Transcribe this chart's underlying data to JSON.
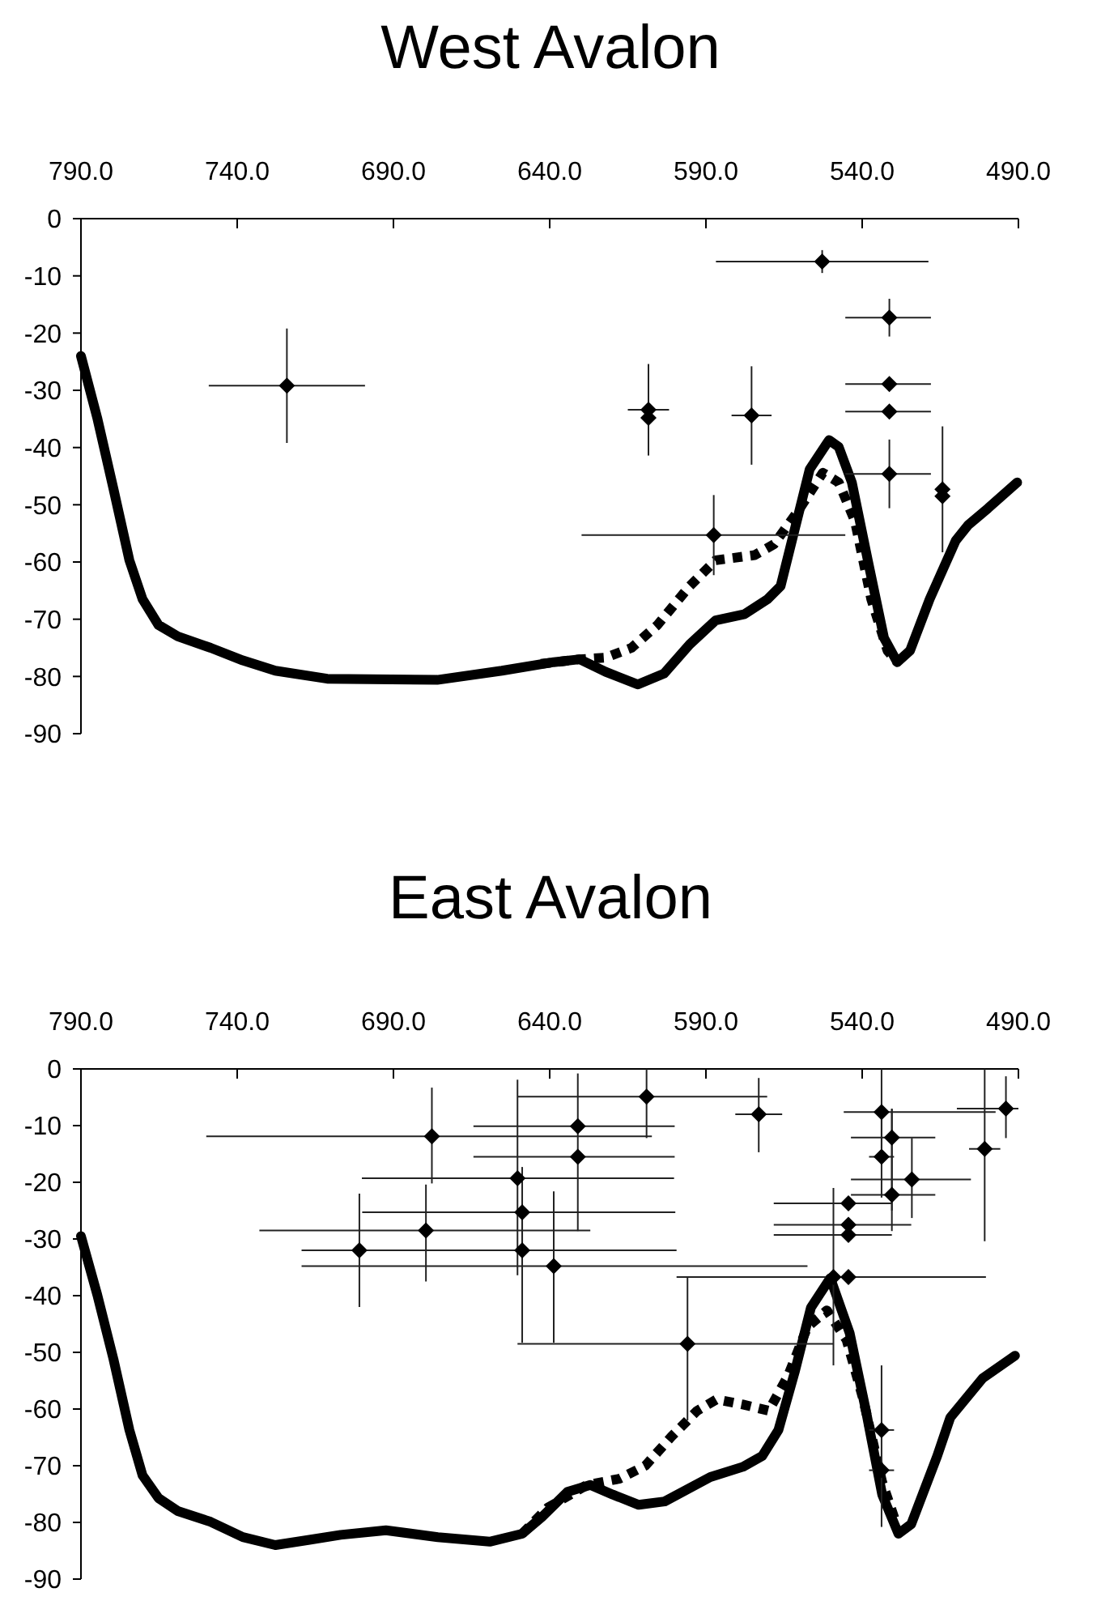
{
  "chart_data": [
    {
      "type": "scatter",
      "title": "West Avalon",
      "xlim": [
        790,
        490
      ],
      "ylim": [
        -90,
        0
      ],
      "xticks": [
        {
          "value": 790,
          "label": "790.0"
        },
        {
          "value": 740,
          "label": "740.0"
        },
        {
          "value": 690,
          "label": "690.0"
        },
        {
          "value": 640,
          "label": "640.0"
        },
        {
          "value": 590,
          "label": "590.0"
        },
        {
          "value": 540,
          "label": "540.0"
        },
        {
          "value": 490,
          "label": "490.0"
        }
      ],
      "yticks": [
        0,
        -10,
        -20,
        -30,
        -40,
        -50,
        -60,
        -70,
        -80,
        -90
      ],
      "grid": false,
      "series": [
        {
          "type": "line",
          "line_style": "solid",
          "color": "#000000",
          "x": [
            790,
            784.8,
            779.6,
            774.5,
            770.3,
            765.2,
            759,
            748.5,
            738.2,
            727.8,
            711.2,
            676,
            655.3,
            638.7,
            630.4,
            622.1,
            611.8,
            603.4,
            595.2,
            586.9,
            577.6,
            570.3,
            566.1,
            562,
            556.8,
            550.6,
            547.5,
            543.3,
            538.2,
            533,
            528.8,
            524.7,
            518.4,
            510.1,
            506,
            499.7,
            490.4
          ],
          "values": [
            -24,
            -34.8,
            -47.2,
            -59.7,
            -66.5,
            -71,
            -73,
            -75,
            -77.2,
            -79,
            -80.4,
            -80.6,
            -79,
            -77.5,
            -77,
            -79.2,
            -81.4,
            -79.5,
            -74.4,
            -70.2,
            -69.1,
            -66.5,
            -64.2,
            -55.2,
            -43.8,
            -38.7,
            -39.9,
            -46.1,
            -59.7,
            -73.3,
            -77.5,
            -75.5,
            -66.5,
            -56.3,
            -53.5,
            -50.6,
            -46.1
          ]
        },
        {
          "type": "line",
          "line_style": "dotted",
          "color": "#000000",
          "x": [
            642.8,
            630.4,
            622,
            613.8,
            605.5,
            595.2,
            586.9,
            574.4,
            568.2,
            559.9,
            552.6,
            547.5,
            542.3,
            537.1,
            531.9,
            528.8
          ],
          "values": [
            -77.8,
            -77,
            -76.7,
            -75,
            -71,
            -64.2,
            -59.7,
            -58.8,
            -56.9,
            -50.6,
            -44.4,
            -46.1,
            -52.9,
            -66.5,
            -75.5,
            -77.5
          ]
        },
        {
          "type": "scatter",
          "marker": "diamond",
          "color": "#000000",
          "x": [
            724.1,
            608.4,
            608.4,
            575.4,
            587.5,
            552.8,
            531.3,
            531.3,
            531.3,
            531.3,
            514.3,
            514.3
          ],
          "values": [
            -29.2,
            -33.4,
            -34.8,
            -34.4,
            -55.3,
            -7.5,
            -17.3,
            -28.9,
            -33.7,
            -44.6,
            -47.3,
            -48.5
          ],
          "xerrors": [
            25,
            6.6,
            null,
            6.4,
            [
              545.4,
              629.8
            ],
            34,
            [
              518,
              545.4
            ],
            [
              518,
              545.4
            ],
            [
              518,
              545.4
            ],
            [
              518,
              545.4
            ],
            null,
            null
          ],
          "errors": [
            10,
            8,
            null,
            8.6,
            7,
            2,
            3.3,
            null,
            null,
            6,
            11,
            null
          ]
        }
      ]
    },
    {
      "type": "scatter",
      "title": "East Avalon",
      "xlim": [
        790,
        490
      ],
      "ylim": [
        -90,
        0
      ],
      "xticks": [
        {
          "value": 790,
          "label": "790.0"
        },
        {
          "value": 740,
          "label": "740.0"
        },
        {
          "value": 690,
          "label": "690.0"
        },
        {
          "value": 640,
          "label": "640.0"
        },
        {
          "value": 590,
          "label": "590.0"
        },
        {
          "value": 540,
          "label": "540.0"
        },
        {
          "value": 490,
          "label": "490.0"
        }
      ],
      "yticks": [
        0,
        -10,
        -20,
        -30,
        -40,
        -50,
        -60,
        -70,
        -80,
        -90
      ],
      "grid": false,
      "series": [
        {
          "type": "line",
          "line_style": "solid",
          "color": "#000000",
          "x": [
            790,
            784.8,
            779.6,
            774.5,
            770.3,
            765.2,
            759,
            748.5,
            738.2,
            727.8,
            717.3,
            706.9,
            692.4,
            675.8,
            659.2,
            648.8,
            642.6,
            634.3,
            627,
            619.8,
            611.5,
            603.2,
            588.6,
            578.2,
            572,
            566.8,
            561.6,
            556.4,
            550.2,
            544,
            538.8,
            533.6,
            528.4,
            524.3,
            516,
            511.8,
            501.5,
            491.1
          ],
          "values": [
            -29.5,
            -39.8,
            -51.2,
            -63.7,
            -71.7,
            -75.7,
            -78,
            -79.9,
            -82.6,
            -84,
            -83.1,
            -82.2,
            -81.4,
            -82.6,
            -83.4,
            -82,
            -79.1,
            -74.6,
            -73.4,
            -75.1,
            -76.9,
            -76.3,
            -72,
            -70.2,
            -68.3,
            -63.7,
            -53.5,
            -42.1,
            -36.9,
            -46.6,
            -60.3,
            -75.1,
            -82,
            -80.3,
            -68.3,
            -61.5,
            -54.6,
            -50.6
          ]
        },
        {
          "type": "line",
          "line_style": "dotted",
          "color": "#000000",
          "x": [
            648.8,
            640.6,
            628.1,
            617.7,
            609.4,
            601.1,
            592.8,
            586.6,
            578.2,
            569.9,
            563.7,
            557.5,
            551.3,
            545,
            539.8,
            533.6,
            529.4
          ],
          "values": [
            -82,
            -77.4,
            -73.4,
            -72.3,
            -70,
            -64.9,
            -60.3,
            -58.3,
            -59.2,
            -60.3,
            -54.1,
            -45.5,
            -42.6,
            -47.8,
            -58,
            -72.9,
            -79.7
          ]
        },
        {
          "type": "scatter",
          "marker": "diamond",
          "color": "#000000",
          "x": [
            677.7,
            700.9,
            679.6,
            650.3,
            648.8,
            648.8,
            638.7,
            631,
            631,
            609,
            573.1,
            533.8,
            530.5,
            533.8,
            524.1,
            530.5,
            544.4,
            544.4,
            544.4,
            544.4,
            549.2,
            595.9,
            500.8,
            494,
            533.8,
            533.8
          ],
          "values": [
            -11.9,
            -32,
            -28.5,
            -19.3,
            -25.3,
            -32,
            -34.8,
            -10.1,
            -15.5,
            -4.9,
            -8,
            -7.6,
            -12.1,
            -15.5,
            -19.5,
            -22.2,
            -23.7,
            -27.5,
            -29.3,
            -36.7,
            -36.7,
            -48.5,
            -14.1,
            -7,
            -63.7,
            -70.8
          ],
          "xerrors": [
            [
              607.3,
              749.9
            ],
            8,
            [
              627,
              732.9
            ],
            [
              600.2,
              700.1
            ],
            [
              599.8,
              700
            ],
            [
              599.4,
              719.4
            ],
            [
              557.5,
              719.4
            ],
            [
              600,
              664.4
            ],
            [
              600,
              664.4
            ],
            [
              570.4,
              650.3
            ],
            7.5,
            [
              497.3,
              545.9
            ],
            [
              516.6,
              543.6
            ],
            4,
            [
              505.2,
              543.6
            ],
            [
              516.6,
              543.6
            ],
            [
              530.5,
              568.3
            ],
            [
              524.3,
              568.3
            ],
            [
              530.5,
              568.3
            ],
            [
              524.3,
              568.3
            ],
            [
              500.4,
              599.4
            ],
            [
              549.2,
              650.3
            ],
            5,
            [
              490,
              509.7
            ],
            4,
            4
          ],
          "errors": [
            [
              -20.2,
              -3.3
            ],
            10,
            [
              -37.5,
              -20.4
            ],
            [
              -36.4,
              -1.9
            ],
            8,
            [
              -48.3,
              -24
            ],
            [
              -48.3,
              -21.6
            ],
            [
              -28.6,
              -0.8
            ],
            null,
            [
              -12.2,
              0
            ],
            [
              -14.7,
              -1.6
            ],
            [
              -14,
              0
            ],
            [
              -25,
              -7
            ],
            [
              -22.7,
              -7.6
            ],
            [
              -26.3,
              -12.2
            ],
            [
              -28.6,
              -7.1
            ],
            null,
            null,
            null,
            null,
            [
              -52.3,
              -21
            ],
            [
              -62,
              -36.7
            ],
            [
              -30.4,
              0
            ],
            [
              -12.2,
              -1.3
            ],
            [
              -80.8,
              -52.3
            ],
            null
          ]
        }
      ]
    }
  ]
}
